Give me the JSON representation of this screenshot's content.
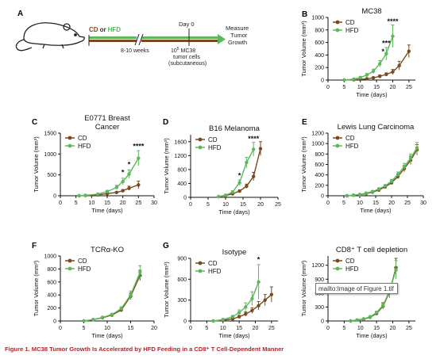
{
  "colors": {
    "cd": "#7a4a1e",
    "hfd": "#5cb85c",
    "caption": "#b0252b"
  },
  "panel_a": {
    "letter": "A",
    "diet_cd": "CD",
    "diet_or": "or",
    "diet_hfd": "HFD",
    "weeks": "8-10 weeks",
    "day0": "Day 0",
    "cells_line1_base": "10",
    "cells_line1_sup": "5",
    "cells_line1_rest": " MC38",
    "cells_line2": "tumor cells",
    "cells_line3": "(subcutaneous)",
    "measure_line1": "Measure",
    "measure_line2": "Tumor",
    "measure_line3": "Growth"
  },
  "caption": "Figure 1. MC38 Tumor Growth Is Accelerated by HFD Feeding in a CD8⁺ T Cell-Dependent Manner",
  "tooltip": "mailto:Image of Figure 1.tif",
  "chart_data": [
    {
      "letter": "B",
      "type": "line",
      "title": [
        "MC38"
      ],
      "xlabel": "Time (days)",
      "ylabel": "Tumor Volume (mm³)",
      "xlim": [
        0,
        27
      ],
      "ylim": [
        0,
        1000
      ],
      "xticks": [
        0,
        5,
        10,
        15,
        20,
        25
      ],
      "yticks": [
        0,
        200,
        400,
        600,
        800,
        1000
      ],
      "legend": [
        "CD",
        "HFD"
      ],
      "series": [
        {
          "name": "CD",
          "x": [
            5,
            8,
            10,
            12,
            14,
            16,
            18,
            20,
            22,
            25
          ],
          "y": [
            0,
            5,
            10,
            20,
            35,
            60,
            90,
            130,
            230,
            460
          ],
          "err": [
            0,
            5,
            8,
            10,
            15,
            20,
            25,
            40,
            70,
            100
          ]
        },
        {
          "name": "HFD",
          "x": [
            5,
            8,
            10,
            12,
            14,
            16,
            18,
            20
          ],
          "y": [
            0,
            15,
            40,
            80,
            140,
            260,
            420,
            700
          ],
          "err": [
            0,
            8,
            15,
            25,
            35,
            50,
            100,
            180
          ]
        }
      ],
      "annotations": [
        {
          "x": 17,
          "y": 420,
          "text": "*"
        },
        {
          "x": 18,
          "y": 550,
          "text": "***"
        },
        {
          "x": 20,
          "y": 900,
          "text": "****"
        }
      ]
    },
    {
      "letter": "C",
      "type": "line",
      "title": [
        "E0771 Breast",
        "Cancer"
      ],
      "xlabel": "Time (days)",
      "ylabel": "Tumor Volume (mm³)",
      "xlim": [
        0,
        30
      ],
      "ylim": [
        0,
        1500
      ],
      "xticks": [
        0,
        5,
        10,
        15,
        20,
        25,
        30
      ],
      "yticks": [
        0,
        500,
        1000,
        1500
      ],
      "legend": [
        "CD",
        "HFD"
      ],
      "series": [
        {
          "name": "CD",
          "x": [
            6,
            8,
            12,
            15,
            18,
            20,
            22,
            25
          ],
          "y": [
            0,
            5,
            20,
            50,
            80,
            120,
            180,
            260
          ],
          "err": [
            0,
            5,
            10,
            15,
            20,
            30,
            50,
            90
          ]
        },
        {
          "name": "HFD",
          "x": [
            6,
            8,
            12,
            15,
            18,
            20,
            22,
            25
          ],
          "y": [
            0,
            10,
            40,
            100,
            200,
            340,
            520,
            900
          ],
          "err": [
            0,
            5,
            15,
            30,
            50,
            80,
            100,
            180
          ]
        }
      ],
      "annotations": [
        {
          "x": 20,
          "y": 500,
          "text": "*"
        },
        {
          "x": 22,
          "y": 690,
          "text": "*"
        },
        {
          "x": 25,
          "y": 1130,
          "text": "****"
        }
      ]
    },
    {
      "letter": "D",
      "type": "line",
      "title": [
        "B16 Melanoma"
      ],
      "xlabel": "Time (days)",
      "ylabel": "Tumor Volume (mm³)",
      "xlim": [
        0,
        25
      ],
      "ylim": [
        0,
        1800
      ],
      "xticks": [
        0,
        5,
        10,
        15,
        20,
        25
      ],
      "yticks": [
        0,
        400,
        800,
        1200,
        1600
      ],
      "legend": [
        "CD",
        "HFD"
      ],
      "series": [
        {
          "name": "CD",
          "x": [
            8,
            10,
            12,
            14,
            16,
            18,
            20
          ],
          "y": [
            20,
            50,
            100,
            180,
            320,
            600,
            1400
          ],
          "err": [
            10,
            15,
            20,
            30,
            60,
            120,
            200
          ]
        },
        {
          "name": "HFD",
          "x": [
            8,
            10,
            12,
            14,
            16,
            18
          ],
          "y": [
            20,
            60,
            150,
            420,
            1000,
            1380
          ],
          "err": [
            10,
            20,
            40,
            80,
            150,
            200
          ]
        }
      ],
      "annotations": [
        {
          "x": 14,
          "y": 560,
          "text": "*"
        },
        {
          "x": 18,
          "y": 1620,
          "text": "****"
        }
      ]
    },
    {
      "letter": "E",
      "type": "line",
      "title": [
        "Lewis Lung Carcinoma"
      ],
      "xlabel": "Time (days)",
      "ylabel": "Tumor Volume (mm³)",
      "xlim": [
        0,
        30
      ],
      "ylim": [
        0,
        1200
      ],
      "xticks": [
        0,
        5,
        10,
        15,
        20,
        25,
        30
      ],
      "yticks": [
        0,
        200,
        400,
        600,
        800,
        1000,
        1200
      ],
      "legend": [
        "CD",
        "HFD"
      ],
      "series": [
        {
          "name": "CD",
          "x": [
            6,
            8,
            10,
            12,
            14,
            16,
            18,
            20,
            22,
            24,
            26,
            28
          ],
          "y": [
            0,
            10,
            20,
            40,
            70,
            110,
            170,
            250,
            370,
            520,
            680,
            880
          ],
          "err": [
            0,
            5,
            5,
            10,
            15,
            20,
            25,
            35,
            45,
            60,
            80,
            100
          ]
        },
        {
          "name": "HFD",
          "x": [
            6,
            8,
            10,
            12,
            14,
            16,
            18,
            20,
            22,
            24,
            26,
            28
          ],
          "y": [
            0,
            10,
            25,
            50,
            80,
            130,
            190,
            280,
            410,
            560,
            720,
            920
          ],
          "err": [
            0,
            5,
            5,
            10,
            15,
            20,
            25,
            35,
            45,
            60,
            80,
            100
          ]
        }
      ],
      "annotations": []
    },
    {
      "letter": "F",
      "type": "line",
      "title": [
        "TCRα-KO"
      ],
      "xlabel": "Time (days)",
      "ylabel": "Tumor Volume (mm³)",
      "xlim": [
        0,
        20
      ],
      "ylim": [
        0,
        1000
      ],
      "xticks": [
        0,
        5,
        10,
        15,
        20
      ],
      "yticks": [
        0,
        200,
        400,
        600,
        800,
        1000
      ],
      "legend": [
        "CD",
        "HFD"
      ],
      "series": [
        {
          "name": "CD",
          "x": [
            5,
            7,
            9,
            11,
            13,
            15,
            17
          ],
          "y": [
            0,
            20,
            50,
            90,
            170,
            380,
            700
          ],
          "err": [
            0,
            5,
            10,
            15,
            30,
            50,
            80
          ]
        },
        {
          "name": "HFD",
          "x": [
            5,
            7,
            9,
            11,
            13,
            15,
            17
          ],
          "y": [
            0,
            20,
            55,
            100,
            190,
            400,
            750
          ],
          "err": [
            0,
            5,
            10,
            15,
            30,
            60,
            100
          ]
        }
      ],
      "annotations": []
    },
    {
      "letter": "G",
      "type": "line",
      "title": [
        "Isotype"
      ],
      "xlabel": "Time (days)",
      "ylabel": "Tumor Volume (mm³)",
      "xlim": [
        0,
        27
      ],
      "ylim": [
        0,
        900
      ],
      "xticks": [
        0,
        5,
        10,
        15,
        20,
        25
      ],
      "yticks": [
        0,
        300,
        600,
        900
      ],
      "legend": [
        "CD",
        "HFD"
      ],
      "series": [
        {
          "name": "CD",
          "x": [
            7,
            10,
            13,
            15,
            17,
            19,
            21,
            23,
            25
          ],
          "y": [
            0,
            10,
            30,
            60,
            100,
            150,
            220,
            300,
            380
          ],
          "err": [
            0,
            5,
            10,
            20,
            30,
            40,
            60,
            80,
            110
          ]
        },
        {
          "name": "HFD",
          "x": [
            7,
            10,
            13,
            15,
            17,
            19,
            21
          ],
          "y": [
            0,
            20,
            60,
            120,
            200,
            320,
            560
          ],
          "err": [
            0,
            10,
            20,
            40,
            60,
            100,
            250
          ]
        }
      ],
      "annotations": [
        {
          "x": 21,
          "y": 850,
          "text": "*"
        }
      ]
    },
    {
      "letter": "",
      "type": "line",
      "title": [
        "CD8⁺ T cell depletion"
      ],
      "xlabel": "Time (days)",
      "ylabel": "Tumor Volume (mm³)",
      "xlim": [
        0,
        27
      ],
      "ylim": [
        0,
        1400
      ],
      "xticks": [
        0,
        5,
        10,
        15,
        20,
        25
      ],
      "yticks": [
        0,
        300,
        600,
        900,
        1200
      ],
      "legend": [
        "CD",
        "HFD"
      ],
      "series": [
        {
          "name": "CD",
          "x": [
            7,
            9,
            11,
            13,
            15,
            17,
            19,
            21
          ],
          "y": [
            0,
            20,
            40,
            80,
            160,
            320,
            620,
            1150
          ],
          "err": [
            0,
            5,
            10,
            15,
            30,
            60,
            120,
            200
          ]
        },
        {
          "name": "HFD",
          "x": [
            7,
            9,
            11,
            13,
            15,
            17,
            19,
            21
          ],
          "y": [
            0,
            20,
            45,
            90,
            180,
            340,
            640,
            1100
          ],
          "err": [
            0,
            5,
            10,
            15,
            30,
            60,
            120,
            200
          ]
        }
      ],
      "annotations": []
    }
  ]
}
